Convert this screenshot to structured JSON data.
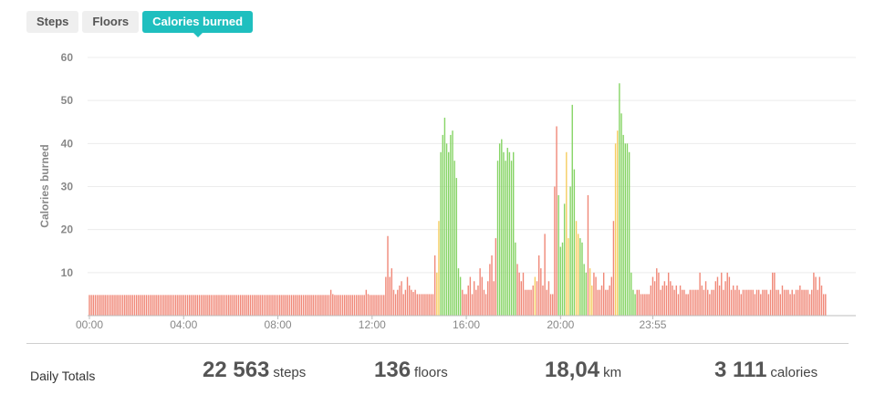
{
  "tabs": [
    {
      "label": "Steps",
      "active": false
    },
    {
      "label": "Floors",
      "active": false
    },
    {
      "label": "Calories burned",
      "active": true
    }
  ],
  "chart_data": {
    "type": "bar",
    "ylabel": "Calories burned",
    "ylim": [
      0,
      60
    ],
    "yticks": [
      10,
      20,
      30,
      40,
      50,
      60
    ],
    "x_ticks": [
      "00:00",
      "04:00",
      "08:00",
      "12:00",
      "16:00",
      "20:00",
      "23:55"
    ],
    "interval_minutes": 5,
    "grid": true,
    "colors": {
      "sedentary": "#f08878",
      "light": "#f5cd60",
      "active": "#86d465"
    },
    "values": [
      4.8,
      4.8,
      4.8,
      4.8,
      4.8,
      4.8,
      4.8,
      4.8,
      4.8,
      4.8,
      4.8,
      4.8,
      4.8,
      4.8,
      4.8,
      4.8,
      4.8,
      4.8,
      4.8,
      4.8,
      4.8,
      4.8,
      4.8,
      4.8,
      4.8,
      4.8,
      4.8,
      4.8,
      4.8,
      4.8,
      4.8,
      4.8,
      4.8,
      4.8,
      4.8,
      4.8,
      4.8,
      4.8,
      4.8,
      4.8,
      4.8,
      4.8,
      4.8,
      4.8,
      4.8,
      4.8,
      4.8,
      4.8,
      4.8,
      4.8,
      4.8,
      4.8,
      4.8,
      4.8,
      4.8,
      4.8,
      4.8,
      4.8,
      4.8,
      4.8,
      4.8,
      4.8,
      4.8,
      4.8,
      4.8,
      4.8,
      4.8,
      4.8,
      4.8,
      4.8,
      4.8,
      4.8,
      4.8,
      4.8,
      4.8,
      4.8,
      4.8,
      4.8,
      4.8,
      4.8,
      4.8,
      4.8,
      4.8,
      4.8,
      4.8,
      4.8,
      4.8,
      4.8,
      4.8,
      4.8,
      4.8,
      4.8,
      4.8,
      4.8,
      4.8,
      4.8,
      4.8,
      4.8,
      4.8,
      4.8,
      4.8,
      4.8,
      4.8,
      4.8,
      4.8,
      4.8,
      4.8,
      4.8,
      4.8,
      4.8,
      4.8,
      4.8,
      4.8,
      4.8,
      4.8,
      4.8,
      4.8,
      4.8,
      4.8,
      4.8,
      4.8,
      4.8,
      4.8,
      6,
      5,
      4.8,
      4.8,
      4.8,
      4.8,
      4.8,
      4.8,
      4.8,
      4.8,
      4.8,
      4.8,
      4.8,
      4.8,
      4.8,
      4.8,
      4.8,
      4.8,
      6,
      5,
      4.8,
      4.8,
      4.8,
      4.8,
      4.8,
      4.8,
      4.8,
      4.8,
      9,
      18.5,
      9,
      11,
      6,
      5,
      6,
      7,
      8,
      5,
      6,
      9,
      7,
      6,
      5.5,
      6,
      5,
      5,
      5,
      5,
      5,
      5,
      5,
      5,
      5,
      14,
      10,
      22,
      38,
      42,
      46,
      40,
      38,
      42,
      43,
      36,
      32,
      11,
      9,
      6,
      5,
      5,
      7,
      9,
      5,
      8,
      6,
      7,
      11,
      9,
      6,
      5,
      8,
      12,
      14,
      8,
      18,
      36,
      40,
      41,
      38,
      36,
      39,
      38,
      36,
      38,
      17,
      12,
      10,
      8,
      10,
      6,
      6,
      6,
      6,
      7,
      9,
      8,
      14,
      11,
      7,
      19,
      6,
      8,
      5,
      5,
      30,
      44,
      28,
      16,
      17,
      26,
      38,
      18,
      30,
      49,
      34,
      22,
      19,
      18,
      17,
      12,
      10,
      28,
      11,
      7,
      10,
      9,
      6,
      6,
      7,
      10,
      6,
      6,
      7,
      9,
      22,
      40,
      43,
      54,
      47,
      42,
      40,
      40,
      38,
      10,
      6,
      5,
      6,
      6,
      5,
      5,
      5,
      5,
      5,
      7,
      9,
      8,
      11,
      10,
      6,
      7,
      8,
      7,
      10,
      8,
      7,
      6,
      7,
      5,
      7,
      6,
      6,
      5,
      5,
      6,
      6,
      6,
      6,
      6,
      10,
      7,
      6,
      8,
      6,
      5,
      6,
      6,
      8,
      9,
      7,
      10,
      6,
      8,
      10,
      9,
      6,
      7,
      6,
      7,
      6,
      5,
      6,
      6,
      6,
      6,
      6,
      6,
      5,
      6,
      6,
      5,
      6,
      6,
      6,
      5,
      6,
      10,
      10,
      6,
      6,
      5,
      7,
      6,
      6,
      6,
      5,
      6,
      5,
      6,
      6,
      7,
      6,
      6,
      6,
      6,
      5,
      6,
      10,
      9,
      6,
      9,
      7,
      5,
      5,
      0,
      0,
      0,
      0,
      0,
      0,
      0,
      0
    ],
    "active_ranges": [
      [
        179,
        189
      ],
      [
        208,
        217
      ],
      [
        239,
        242
      ],
      [
        245,
        247
      ],
      [
        250,
        253
      ],
      [
        270,
        278
      ]
    ],
    "light_ranges": [
      [
        177,
        178
      ],
      [
        227,
        227
      ],
      [
        243,
        244
      ],
      [
        248,
        249
      ],
      [
        255,
        256
      ],
      [
        268,
        269
      ]
    ]
  },
  "totals": {
    "label": "Daily Totals",
    "steps": {
      "value": "22 563",
      "unit": "steps"
    },
    "floors": {
      "value": "136",
      "unit": "floors"
    },
    "distance": {
      "value": "18,04",
      "unit": "km"
    },
    "calories": {
      "value": "3 111",
      "unit": "calories"
    }
  }
}
